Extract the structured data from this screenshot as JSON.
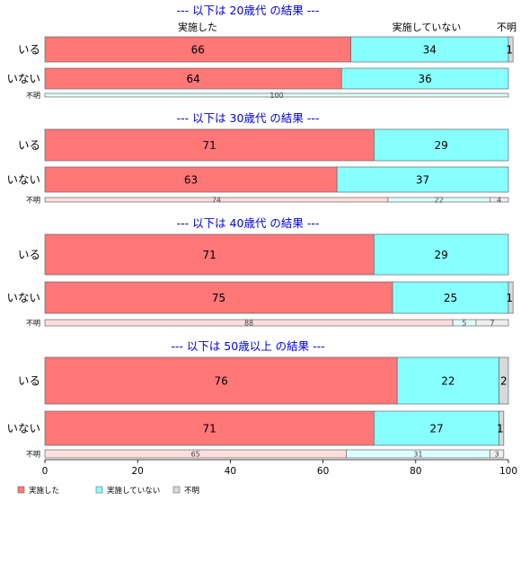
{
  "chart_data": {
    "type": "bar",
    "orientation": "horizontal",
    "stacked": "100%",
    "column_headers": [
      "実施した",
      "実施していない",
      "不明"
    ],
    "series": [
      {
        "name": "実施した",
        "color": "#ff7777"
      },
      {
        "name": "実施していない",
        "color": "#88ffff"
      },
      {
        "name": "不明",
        "color": "#d9d9d9"
      }
    ],
    "panels": [
      {
        "title": "--- 以下は 20歳代 の結果 ---",
        "rows": [
          {
            "label": "いる",
            "values": [
              66,
              34,
              1
            ]
          },
          {
            "label": "いない",
            "values": [
              64,
              36,
              0
            ]
          },
          {
            "label": "不明",
            "values": [
              0,
              100,
              0
            ]
          }
        ]
      },
      {
        "title": "--- 以下は 30歳代 の結果 ---",
        "rows": [
          {
            "label": "いる",
            "values": [
              71,
              29,
              0
            ]
          },
          {
            "label": "いない",
            "values": [
              63,
              37,
              0
            ]
          },
          {
            "label": "不明",
            "values": [
              74,
              22,
              4
            ]
          }
        ]
      },
      {
        "title": "--- 以下は 40歳代 の結果 ---",
        "rows": [
          {
            "label": "いる",
            "values": [
              71,
              29,
              0
            ]
          },
          {
            "label": "いない",
            "values": [
              75,
              25,
              1
            ]
          },
          {
            "label": "不明",
            "values": [
              88,
              5,
              7
            ]
          }
        ]
      },
      {
        "title": "--- 以下は 50歳以上 の結果 ---",
        "rows": [
          {
            "label": "いる",
            "values": [
              76,
              22,
              2
            ]
          },
          {
            "label": "いない",
            "values": [
              71,
              27,
              1
            ]
          },
          {
            "label": "不明",
            "values": [
              65,
              31,
              3
            ]
          }
        ]
      }
    ],
    "x_ticks": [
      0,
      20,
      40,
      60,
      80,
      100
    ],
    "xlim": [
      0,
      100
    ],
    "title_color": "#0000ee",
    "legend_position": "bottom-left",
    "grid": false
  }
}
